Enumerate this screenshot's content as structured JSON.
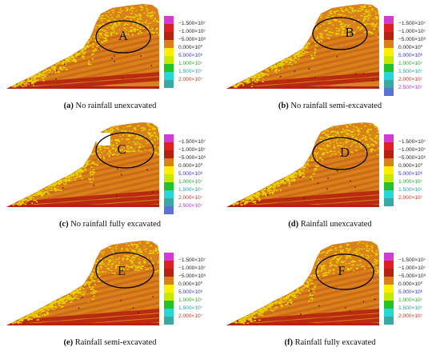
{
  "colors": {
    "bg": "#ffffff",
    "rock_orange": "#d9821c",
    "rock_dark": "#b4400e",
    "band_red": "#b5220f",
    "dots_yellow": "#e9d400",
    "ellipse": "#000000"
  },
  "legend_scales": {
    "six": {
      "colors": [
        "#d63ad6",
        "#e02020",
        "#b5220f",
        "#d9821c",
        "#ffee00",
        "#c8e800",
        "#22c22a",
        "#27d6d6",
        "#3aa9a4"
      ],
      "labels": [
        "−1.500×10⁷",
        "−1.000×10⁷",
        "−5.000×10⁶",
        "0.000×10⁰",
        "5.000×10⁶",
        "1.000×10⁷",
        "1.500×10⁷",
        "2.000×10⁷"
      ],
      "label_colors": [
        "#222222",
        "#222222",
        "#222222",
        "#222222",
        "#3333cc",
        "#22aa22",
        "#1aa1a1",
        "#cc3322"
      ]
    },
    "seven": {
      "colors": [
        "#d63ad6",
        "#e02020",
        "#b5220f",
        "#d9821c",
        "#ffee00",
        "#c8e800",
        "#22c22a",
        "#27d6d6",
        "#3aa9a4",
        "#5b73d6"
      ],
      "labels": [
        "−1.500×10⁷",
        "−1.000×10⁷",
        "−5.000×10⁶",
        "0.000×10⁰",
        "5.000×10⁶",
        "1.000×10⁷",
        "1.500×10⁷",
        "2.000×10⁷",
        "2.500×10⁷"
      ],
      "label_colors": [
        "#222222",
        "#222222",
        "#222222",
        "#222222",
        "#3333cc",
        "#22aa22",
        "#1aa1a1",
        "#cc3322",
        "#aa33cc"
      ]
    }
  },
  "panels": [
    {
      "label": "A",
      "caption_letter": "(a)",
      "caption_text": " No rainfall unexcavated",
      "scale": "six"
    },
    {
      "label": "B",
      "caption_letter": "(b)",
      "caption_text": " No rainfall semi-excavated",
      "scale": "seven"
    },
    {
      "label": "C",
      "caption_letter": "(c)",
      "caption_text": " No rainfall fully excavated",
      "scale": "seven"
    },
    {
      "label": "D",
      "caption_letter": "(d)",
      "caption_text": " Rainfall unexcavated",
      "scale": "six"
    },
    {
      "label": "E",
      "caption_letter": "(e)",
      "caption_text": " Rainfall semi-excavated",
      "scale": "six"
    },
    {
      "label": "F",
      "caption_letter": "(f)",
      "caption_text": " Rainfall fully excavated",
      "scale": "six"
    }
  ]
}
